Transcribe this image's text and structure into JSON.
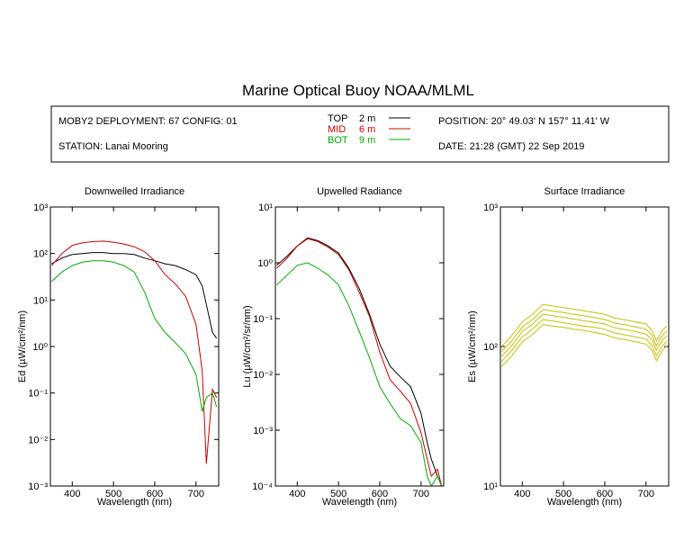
{
  "title": "Marine Optical Buoy NOAA/MLML",
  "header": {
    "deployment": "MOBY2 DEPLOYMENT: 67 CONFIG: 01",
    "station": "STATION: Lanai Mooring",
    "position": "POSITION: 20° 49.03' N  157° 11.41' W",
    "date": "DATE: 21:28 (GMT) 22 Sep 2019"
  },
  "chart_data": [
    {
      "type": "line",
      "title": "Downwelled Irradiance",
      "x_label": "Wavelength (nm)",
      "y_label": "Ed  (µW/cm²/nm)",
      "log_y": true,
      "xlim": [
        347,
        755
      ],
      "ylim": [
        0.001,
        1000
      ],
      "xticks": [
        400,
        500,
        600,
        700
      ],
      "yticks": [
        {
          "value": 0.001,
          "label": "10⁻³"
        },
        {
          "value": 0.01,
          "label": "10⁻²"
        },
        {
          "value": 0.1,
          "label": "10⁻¹"
        },
        {
          "value": 1,
          "label": "10⁰"
        },
        {
          "value": 10,
          "label": "10¹"
        },
        {
          "value": 100,
          "label": "10²"
        },
        {
          "value": 1000,
          "label": "10³"
        }
      ],
      "x": [
        350,
        375,
        400,
        425,
        450,
        475,
        500,
        525,
        550,
        575,
        600,
        625,
        650,
        675,
        700,
        715,
        725,
        740,
        750
      ],
      "series": [
        {
          "name": "TOP",
          "depth": "2 m",
          "color": "#000000",
          "values": [
            60,
            80,
            95,
            100,
            105,
            105,
            100,
            100,
            95,
            80,
            70,
            60,
            55,
            45,
            35,
            20,
            8,
            2,
            1.5
          ]
        },
        {
          "name": "MID",
          "depth": "6 m",
          "color": "#cc0000",
          "values": [
            55,
            100,
            150,
            170,
            180,
            185,
            175,
            160,
            140,
            110,
            70,
            35,
            22,
            12,
            3,
            0.3,
            0.003,
            0.12,
            0.08
          ]
        },
        {
          "name": "BOT",
          "depth": "9 m",
          "color": "#00aa00",
          "values": [
            25,
            40,
            55,
            65,
            70,
            70,
            65,
            55,
            40,
            15,
            4,
            2,
            1.2,
            0.7,
            0.25,
            0.04,
            0.08,
            0.1,
            0.05
          ]
        }
      ]
    },
    {
      "type": "line",
      "title": "Upwelled Radiance",
      "x_label": "Wavelength (nm)",
      "y_label": "Lu  (µW/cm²/sr/nm)",
      "log_y": true,
      "xlim": [
        347,
        755
      ],
      "ylim": [
        0.0001,
        10
      ],
      "xticks": [
        400,
        500,
        600,
        700
      ],
      "yticks": [
        {
          "value": 0.0001,
          "label": "10⁻⁴"
        },
        {
          "value": 0.001,
          "label": "10⁻³"
        },
        {
          "value": 0.01,
          "label": "10⁻²"
        },
        {
          "value": 0.1,
          "label": "10⁻¹"
        },
        {
          "value": 1,
          "label": "10⁰"
        },
        {
          "value": 10,
          "label": "10¹"
        }
      ],
      "x": [
        350,
        375,
        400,
        425,
        450,
        475,
        500,
        525,
        550,
        575,
        600,
        625,
        650,
        675,
        700,
        715,
        725,
        740,
        750
      ],
      "series": [
        {
          "color": "#000000",
          "values": [
            0.9,
            1.3,
            2,
            2.8,
            2.5,
            2,
            1.5,
            0.8,
            0.35,
            0.12,
            0.035,
            0.014,
            0.009,
            0.006,
            0.002,
            0.0006,
            0.0003,
            0.00015,
            0.0001
          ]
        },
        {
          "color": "#cc0000",
          "values": [
            0.8,
            1.2,
            2,
            2.7,
            2.4,
            1.9,
            1.4,
            0.75,
            0.3,
            0.11,
            0.025,
            0.008,
            0.005,
            0.003,
            0.0009,
            0.0003,
            0.00015,
            0.0002,
            0.0001
          ]
        },
        {
          "color": "#00aa00",
          "values": [
            0.4,
            0.6,
            0.9,
            1,
            0.8,
            0.6,
            0.4,
            0.17,
            0.06,
            0.02,
            0.006,
            0.003,
            0.0016,
            0.0012,
            0.0006,
            0.00015,
            0.0001,
            0.00015,
            0.0001
          ]
        }
      ]
    },
    {
      "type": "line",
      "title": "Surface Irradiance",
      "x_label": "Wavelength (nm)",
      "y_label": "Es  (µW/cm²/nm)",
      "log_y": true,
      "xlim": [
        347,
        755
      ],
      "ylim": [
        10,
        1000
      ],
      "xticks": [
        400,
        500,
        600,
        700
      ],
      "yticks": [
        {
          "value": 10,
          "label": "10¹"
        },
        {
          "value": 100,
          "label": "10²"
        },
        {
          "value": 1000,
          "label": "10³"
        }
      ],
      "x": [
        350,
        375,
        400,
        425,
        450,
        475,
        500,
        525,
        550,
        575,
        600,
        625,
        650,
        675,
        700,
        715,
        725,
        740,
        750
      ],
      "series": [
        {
          "color": "#c8c000",
          "values": [
            100,
            120,
            150,
            170,
            200,
            195,
            190,
            185,
            180,
            175,
            170,
            160,
            155,
            150,
            145,
            130,
            110,
            130,
            140
          ]
        },
        {
          "color": "#c8c000",
          "values": [
            92,
            110,
            138,
            156,
            184,
            179,
            175,
            170,
            166,
            161,
            156,
            147,
            143,
            138,
            133,
            120,
            101,
            120,
            129
          ]
        },
        {
          "color": "#c8c000",
          "values": [
            85,
            102,
            128,
            145,
            170,
            166,
            162,
            157,
            153,
            149,
            145,
            136,
            132,
            128,
            123,
            111,
            94,
            111,
            119
          ]
        },
        {
          "color": "#c8c000",
          "values": [
            78,
            94,
            117,
            133,
            156,
            152,
            148,
            144,
            140,
            137,
            133,
            125,
            121,
            117,
            113,
            101,
            86,
            101,
            109
          ]
        },
        {
          "color": "#c8c000",
          "values": [
            72,
            86,
            108,
            122,
            144,
            140,
            137,
            133,
            130,
            126,
            122,
            115,
            112,
            108,
            104,
            94,
            79,
            94,
            101
          ]
        }
      ]
    }
  ]
}
